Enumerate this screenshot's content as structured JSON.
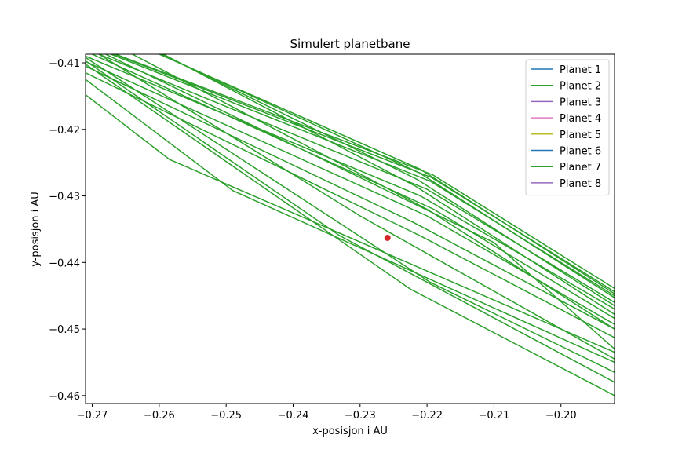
{
  "chart_data": {
    "type": "line",
    "title": "Simulert planetbane",
    "xlabel": "x-posisjon i AU",
    "ylabel": "y-posisjon i AU",
    "xlim": [
      -0.271,
      -0.192
    ],
    "ylim": [
      -0.4612,
      -0.4087
    ],
    "x_ticks": [
      -0.27,
      -0.26,
      -0.25,
      -0.24,
      -0.23,
      -0.22,
      -0.21,
      -0.2
    ],
    "x_tick_labels": [
      "−0.27",
      "−0.26",
      "−0.25",
      "−0.24",
      "−0.23",
      "−0.22",
      "−0.21",
      "−0.20"
    ],
    "y_ticks": [
      -0.41,
      -0.42,
      -0.43,
      -0.44,
      -0.45,
      -0.46
    ],
    "y_tick_labels": [
      "−0.41",
      "−0.42",
      "−0.43",
      "−0.44",
      "−0.45",
      "−0.46"
    ],
    "legend": {
      "position": "top-right",
      "entries": [
        {
          "name": "Planet 1",
          "color": "#1f77b4"
        },
        {
          "name": "Planet 2",
          "color": "#2ca02c"
        },
        {
          "name": "Planet 3",
          "color": "#9467bd"
        },
        {
          "name": "Planet 4",
          "color": "#e377c2"
        },
        {
          "name": "Planet 5",
          "color": "#bcbd22"
        },
        {
          "name": "Planet 6",
          "color": "#1f77b4"
        },
        {
          "name": "Planet 7",
          "color": "#2ca02c"
        },
        {
          "name": "Planet 8",
          "color": "#9467bd"
        }
      ]
    },
    "series": [
      {
        "color": "#2ca02c",
        "segments": [
          [
            [
              -0.2665,
              -0.4087
            ],
            [
              -0.2192,
              -0.4268
            ],
            [
              -0.192,
              -0.4439
            ]
          ],
          [
            [
              -0.2667,
              -0.4087
            ],
            [
              -0.2194,
              -0.4272
            ],
            [
              -0.192,
              -0.4444
            ]
          ],
          [
            [
              -0.26,
              -0.4087
            ],
            [
              -0.221,
              -0.426
            ],
            [
              -0.192,
              -0.4447
            ]
          ],
          [
            [
              -0.2672,
              -0.4087
            ],
            [
              -0.2195,
              -0.4278
            ],
            [
              -0.192,
              -0.445
            ]
          ],
          [
            [
              -0.2598,
              -0.4087
            ],
            [
              -0.2212,
              -0.4265
            ],
            [
              -0.192,
              -0.4453
            ]
          ],
          [
            [
              -0.269,
              -0.4087
            ],
            [
              -0.22,
              -0.429
            ],
            [
              -0.192,
              -0.446
            ]
          ],
          [
            [
              -0.2596,
              -0.4087
            ],
            [
              -0.2215,
              -0.4275
            ],
            [
              -0.192,
              -0.4465
            ]
          ],
          [
            [
              -0.271,
              -0.409
            ],
            [
              -0.221,
              -0.43
            ],
            [
              -0.192,
              -0.447
            ]
          ],
          [
            [
              -0.2594,
              -0.4087
            ],
            [
              -0.2218,
              -0.4285
            ],
            [
              -0.192,
              -0.4478
            ]
          ],
          [
            [
              -0.27,
              -0.4087
            ],
            [
              -0.219,
              -0.432
            ],
            [
              -0.192,
              -0.4484
            ]
          ],
          [
            [
              -0.271,
              -0.4098
            ],
            [
              -0.22,
              -0.433
            ],
            [
              -0.192,
              -0.4493
            ]
          ],
          [
            [
              -0.271,
              -0.4105
            ],
            [
              -0.222,
              -0.434
            ],
            [
              -0.192,
              -0.45
            ]
          ],
          [
            [
              -0.271,
              -0.4115
            ],
            [
              -0.221,
              -0.436
            ],
            [
              -0.192,
              -0.4513
            ]
          ],
          [
            [
              -0.271,
              -0.4148
            ],
            [
              -0.2585,
              -0.4245
            ],
            [
              -0.192,
              -0.4535
            ]
          ],
          [
            [
              -0.271,
              -0.4125
            ],
            [
              -0.249,
              -0.4292
            ],
            [
              -0.192,
              -0.455
            ]
          ],
          [
            [
              -0.271,
              -0.4092
            ],
            [
              -0.2195,
              -0.443
            ],
            [
              -0.192,
              -0.4565
            ]
          ],
          [
            [
              -0.271,
              -0.4097
            ],
            [
              -0.233,
              -0.436
            ],
            [
              -0.192,
              -0.458
            ]
          ],
          [
            [
              -0.271,
              -0.4102
            ],
            [
              -0.2225,
              -0.444
            ],
            [
              -0.192,
              -0.46
            ]
          ],
          [
            [
              -0.268,
              -0.4087
            ],
            [
              -0.21,
              -0.437
            ],
            [
              -0.192,
              -0.453
            ]
          ],
          [
            [
              -0.264,
              -0.4087
            ],
            [
              -0.22,
              -0.432
            ],
            [
              -0.192,
              -0.45
            ]
          ],
          [
            [
              -0.269,
              -0.4087
            ],
            [
              -0.23,
              -0.433
            ],
            [
              -0.192,
              -0.4545
            ]
          ]
        ]
      }
    ],
    "marker": {
      "x": -0.2259,
      "y": -0.4363,
      "color": "#d62728"
    }
  }
}
